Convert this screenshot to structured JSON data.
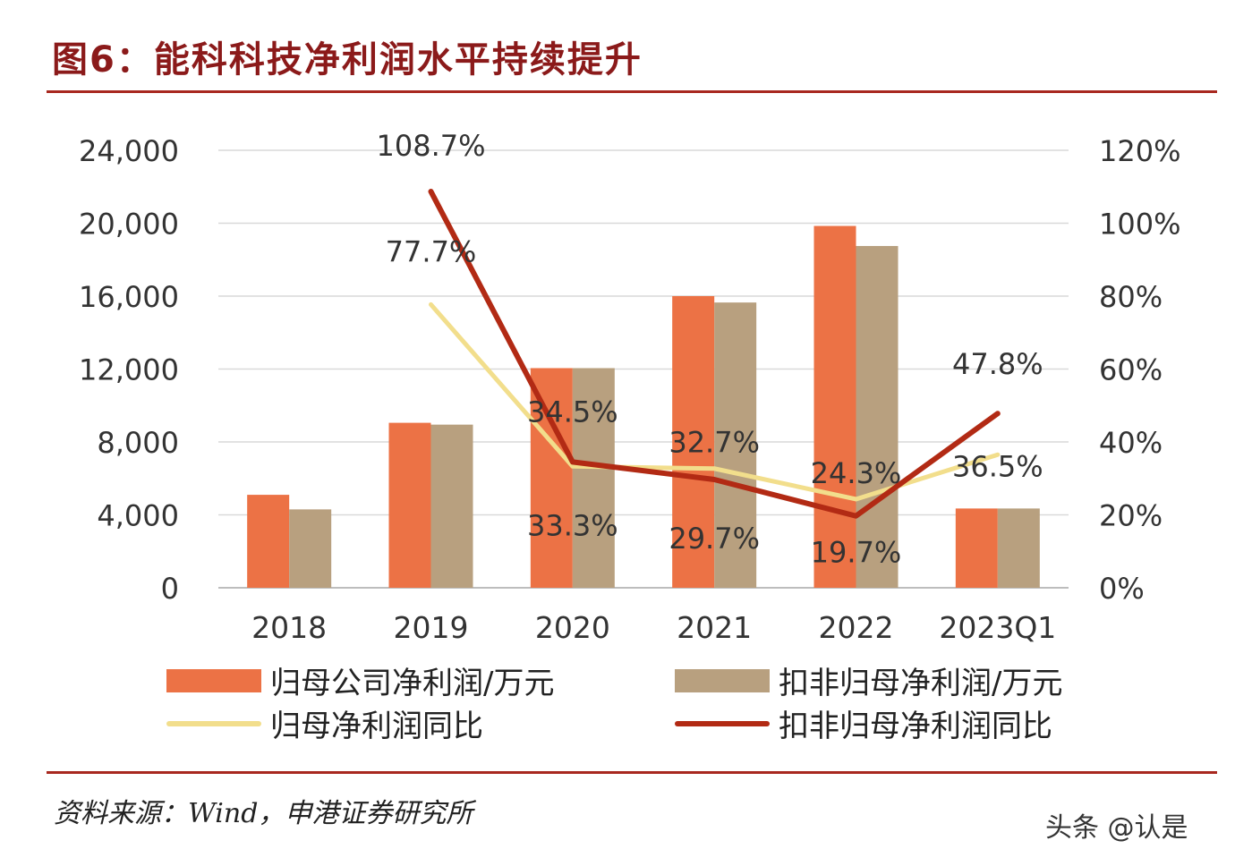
{
  "title": "图6：能科科技净利润水平持续提升",
  "source": "资料来源：Wind，申港证券研究所",
  "watermark": "头条 @认是",
  "colors": {
    "bar1": "#ec7245",
    "bar2": "#b8a07f",
    "line1": "#f2de8c",
    "line2": "#b22a14",
    "rule": "#a8281f",
    "title": "#8b1a1a"
  },
  "chart_data": {
    "type": "bar+line",
    "categories": [
      "2018",
      "2019",
      "2020",
      "2021",
      "2022",
      "2023Q1"
    ],
    "y_left": {
      "min": 0,
      "max": 24000,
      "ticks": [
        "0",
        "4,000",
        "8,000",
        "12,000",
        "16,000",
        "20,000",
        "24,000"
      ]
    },
    "y_right": {
      "min": 0,
      "max": 1.2,
      "ticks": [
        "0%",
        "20%",
        "40%",
        "60%",
        "80%",
        "100%",
        "120%"
      ]
    },
    "grid": true,
    "legend_position": "bottom",
    "bar_series": [
      {
        "name": "归母公司净利润/万元",
        "values": [
          5100,
          9050,
          12050,
          16000,
          19850,
          4350
        ]
      },
      {
        "name": "扣非归母净利润/万元",
        "values": [
          4300,
          8950,
          12050,
          15650,
          18750,
          4350
        ]
      }
    ],
    "line_series": [
      {
        "name": "归母净利润同比",
        "values": [
          null,
          0.777,
          0.333,
          0.327,
          0.243,
          0.365
        ],
        "labels": [
          "",
          "77.7%",
          "33.3%",
          "32.7%",
          "24.3%",
          "36.5%"
        ]
      },
      {
        "name": "扣非归母净利润同比",
        "values": [
          null,
          1.087,
          0.345,
          0.297,
          0.197,
          0.478
        ],
        "labels": [
          "",
          "108.7%",
          "34.5%",
          "29.7%",
          "19.7%",
          "47.8%"
        ]
      }
    ]
  }
}
